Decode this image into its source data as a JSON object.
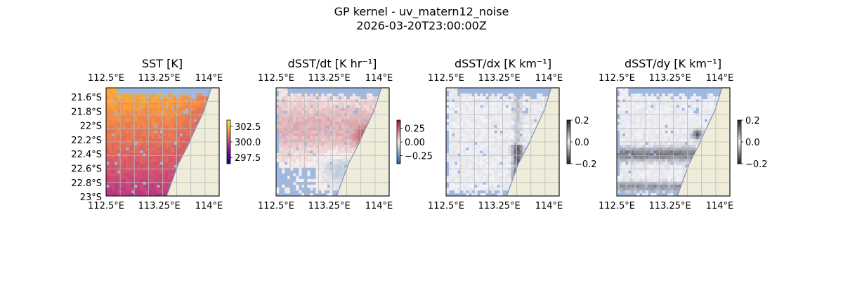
{
  "figure": {
    "title_line1": "GP kernel - uv_matern12_noise",
    "title_line2": "2026-03-20T23:00:00Z"
  },
  "colors": {
    "ocean_mask": "#9db8e2",
    "land": "#efedd9",
    "coast": "#7d8fb0",
    "grid": "#b9b9b9"
  },
  "chart_data": [
    {
      "type": "heatmap",
      "title": "SST [K]",
      "colormap": "plasma-like",
      "colorbar": {
        "min": 296.5,
        "max": 303.5,
        "ticks": [
          302.5,
          300.0,
          297.5
        ],
        "tick_labels": [
          "302.5",
          "300.0",
          "297.5"
        ]
      },
      "lon_range": [
        112.5,
        114.1
      ],
      "lat_range": [
        -23.0,
        -21.5
      ],
      "lon_ticks": [
        "112.5°E",
        "113.25°E",
        "114°E"
      ],
      "lat_ticks": [
        "21.6°S",
        "21.8°S",
        "22°S",
        "22.2°S",
        "22.4°S",
        "22.6°S",
        "22.8°S",
        "23°S"
      ],
      "grid": true,
      "value_description": "warm (≈302) in north, cooler (≈299) near southern coast"
    },
    {
      "type": "heatmap",
      "title": "dSST/dt [K hr⁻¹]",
      "colormap": "diverging red-blue",
      "colorbar": {
        "min": -0.4,
        "max": 0.4,
        "ticks": [
          0.25,
          0.0,
          -0.25
        ],
        "tick_labels": [
          "0.25",
          "0.00",
          "−0.25"
        ]
      },
      "lon_ticks": [
        "112.5°E",
        "113.25°E",
        "114°E"
      ],
      "grid": true
    },
    {
      "type": "heatmap",
      "title": "dSST/dx [K km⁻¹]",
      "colormap": "diverging grey",
      "colorbar": {
        "min": -0.2,
        "max": 0.2,
        "ticks": [
          0.2,
          0.0,
          -0.2
        ],
        "tick_labels": [
          "0.2",
          "0.0",
          "−0.2"
        ]
      },
      "lon_ticks": [
        "112.5°E",
        "113.25°E",
        "114°E"
      ],
      "grid": true
    },
    {
      "type": "heatmap",
      "title": "dSST/dy [K km⁻¹]",
      "colormap": "diverging grey",
      "colorbar": {
        "min": -0.2,
        "max": 0.2,
        "ticks": [
          0.2,
          0.0,
          -0.2
        ],
        "tick_labels": [
          "0.2",
          "0.0",
          "−0.2"
        ]
      },
      "lon_ticks": [
        "112.5°E",
        "113.25°E",
        "114°E"
      ],
      "grid": true
    }
  ]
}
